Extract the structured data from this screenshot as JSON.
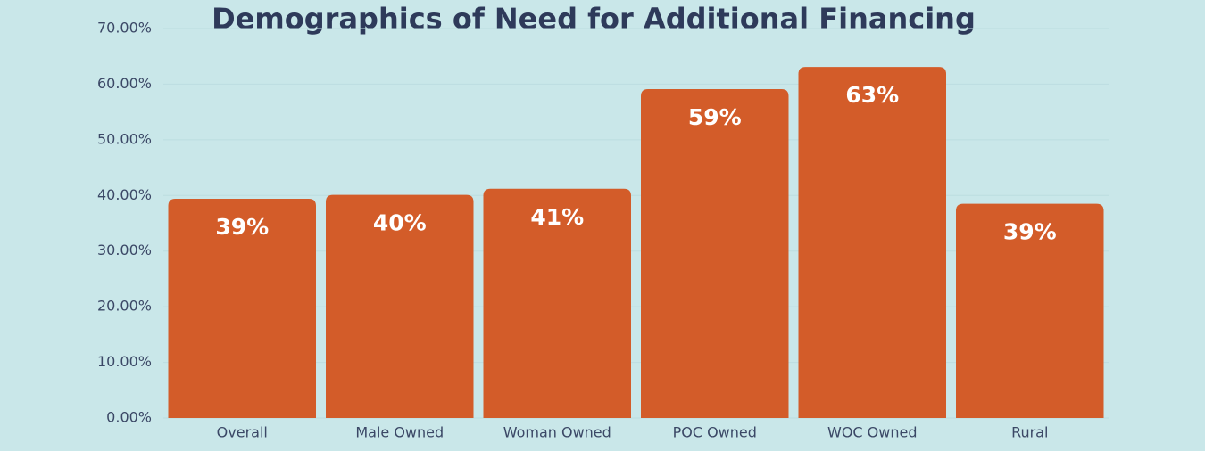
{
  "chart_data": {
    "type": "bar",
    "title": "Demographics of Need for Additional Financing",
    "categories": [
      "Overall",
      "Male Owned",
      "Woman Owned",
      "POC Owned",
      "WOC Owned",
      "Rural"
    ],
    "values": [
      39.4,
      40.1,
      41.2,
      59.1,
      63.1,
      38.5
    ],
    "value_labels": [
      "39%",
      "40%",
      "41%",
      "59%",
      "63%",
      "39%"
    ],
    "color": "#d35c29",
    "ylim": [
      0,
      70
    ],
    "yticks": [
      {
        "value": 0,
        "label": "0.00%"
      },
      {
        "value": 10,
        "label": "10.00%"
      },
      {
        "value": 20,
        "label": "20.00%"
      },
      {
        "value": 30,
        "label": "30.00%"
      },
      {
        "value": 40,
        "label": "40.00%"
      },
      {
        "value": 50,
        "label": "50.00%"
      },
      {
        "value": 60,
        "label": "60.00%"
      },
      {
        "value": 70,
        "label": "70.00%"
      }
    ],
    "grid": true
  }
}
